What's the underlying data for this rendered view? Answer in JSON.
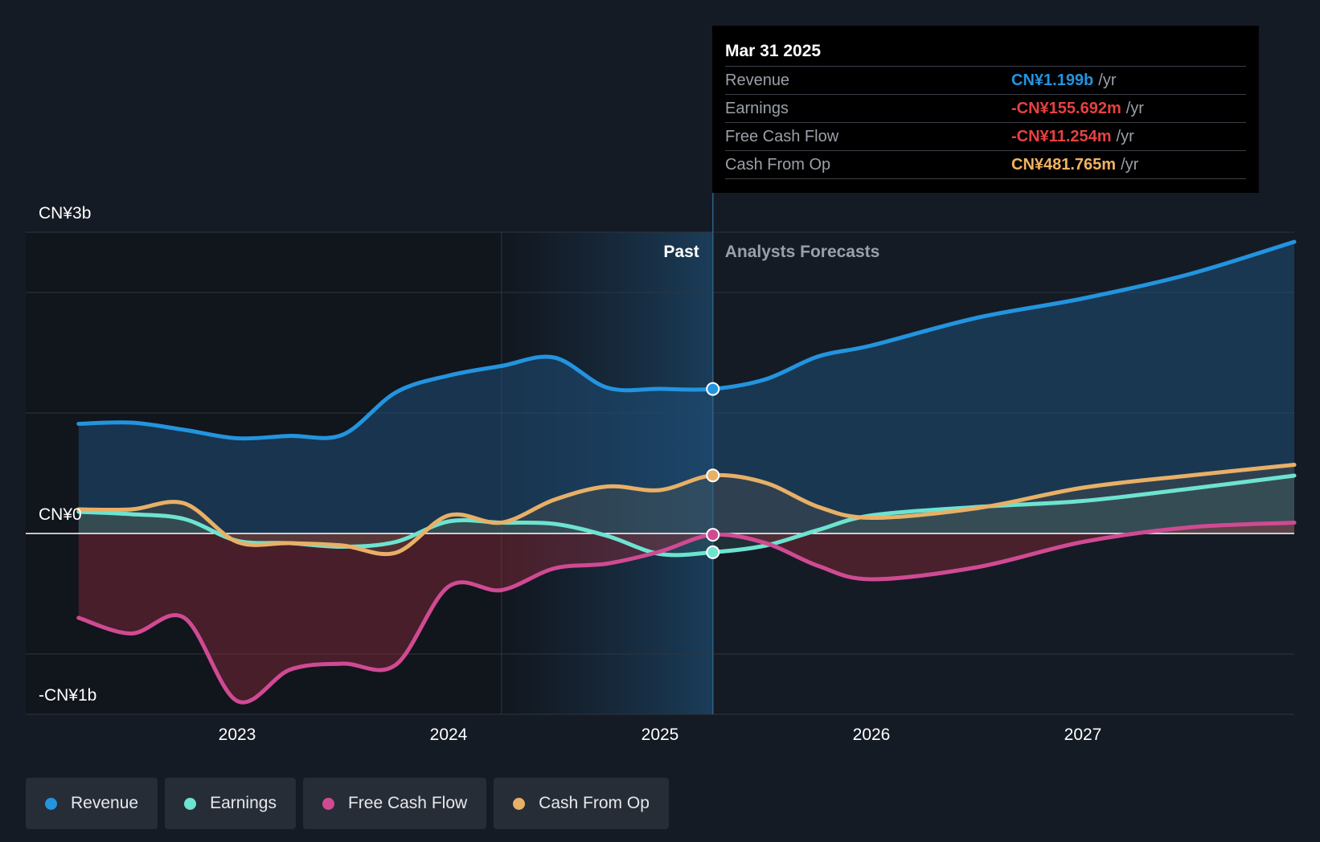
{
  "tooltip": {
    "date": "Mar 31 2025",
    "rows": [
      {
        "label": "Revenue",
        "value": "CN¥1.199b",
        "unit": "/yr",
        "color": "#2394df"
      },
      {
        "label": "Earnings",
        "value": "-CN¥155.692m",
        "unit": "/yr",
        "color": "#e64141"
      },
      {
        "label": "Free Cash Flow",
        "value": "-CN¥11.254m",
        "unit": "/yr",
        "color": "#e64141"
      },
      {
        "label": "Cash From Op",
        "value": "CN¥481.765m",
        "unit": "/yr",
        "color": "#f2b360"
      }
    ]
  },
  "legend": [
    {
      "label": "Revenue",
      "color": "#2394df"
    },
    {
      "label": "Earnings",
      "color": "#6de3d0"
    },
    {
      "label": "Free Cash Flow",
      "color": "#d04a93"
    },
    {
      "label": "Cash From Op",
      "color": "#e8b067"
    }
  ],
  "chart_data": {
    "type": "line",
    "y_tick_labels": [
      {
        "label": "CN¥3b",
        "value": 3.0
      },
      {
        "label": "CN¥0",
        "value": 0.0
      },
      {
        "label": "-CN¥1b",
        "value": -1.0
      }
    ],
    "ylim": [
      -1.5,
      2.5
    ],
    "xlim": [
      2022.0,
      2028.0
    ],
    "x_ticks": [
      {
        "label": "2023",
        "value": 2023.0
      },
      {
        "label": "2024",
        "value": 2024.0
      },
      {
        "label": "2025",
        "value": 2025.0
      },
      {
        "label": "2026",
        "value": 2026.0
      },
      {
        "label": "2027",
        "value": 2027.0
      }
    ],
    "past_label": "Past",
    "forecast_label": "Analysts Forecasts",
    "past_end": 2025.25,
    "highlight_start": 2024.25,
    "series": [
      {
        "name": "Revenue",
        "color": "#2394df",
        "fill": true,
        "points": [
          [
            2022.25,
            0.91
          ],
          [
            2022.5,
            0.92
          ],
          [
            2022.75,
            0.86
          ],
          [
            2023.0,
            0.79
          ],
          [
            2023.25,
            0.81
          ],
          [
            2023.5,
            0.82
          ],
          [
            2023.75,
            1.17
          ],
          [
            2024.0,
            1.31
          ],
          [
            2024.25,
            1.39
          ],
          [
            2024.5,
            1.46
          ],
          [
            2024.75,
            1.21
          ],
          [
            2025.0,
            1.2
          ],
          [
            2025.25,
            1.199
          ],
          [
            2025.5,
            1.28
          ],
          [
            2025.75,
            1.47
          ],
          [
            2026.0,
            1.56
          ],
          [
            2026.5,
            1.79
          ],
          [
            2027.0,
            1.95
          ],
          [
            2027.5,
            2.15
          ],
          [
            2028.0,
            2.42
          ]
        ]
      },
      {
        "name": "Earnings",
        "color": "#6de3d0",
        "fill": true,
        "points": [
          [
            2022.25,
            0.18
          ],
          [
            2022.5,
            0.16
          ],
          [
            2022.75,
            0.12
          ],
          [
            2023.0,
            -0.06
          ],
          [
            2023.25,
            -0.08
          ],
          [
            2023.5,
            -0.11
          ],
          [
            2023.75,
            -0.07
          ],
          [
            2024.0,
            0.1
          ],
          [
            2024.25,
            0.09
          ],
          [
            2024.5,
            0.08
          ],
          [
            2024.75,
            -0.02
          ],
          [
            2025.0,
            -0.17
          ],
          [
            2025.25,
            -0.156
          ],
          [
            2025.5,
            -0.1
          ],
          [
            2025.75,
            0.03
          ],
          [
            2026.0,
            0.15
          ],
          [
            2026.5,
            0.22
          ],
          [
            2027.0,
            0.27
          ],
          [
            2027.5,
            0.37
          ],
          [
            2028.0,
            0.48
          ]
        ]
      },
      {
        "name": "Free Cash Flow",
        "color": "#d04a93",
        "fill": true,
        "points": [
          [
            2022.25,
            -0.7
          ],
          [
            2022.5,
            -0.83
          ],
          [
            2022.75,
            -0.7
          ],
          [
            2023.0,
            -1.39
          ],
          [
            2023.25,
            -1.13
          ],
          [
            2023.5,
            -1.08
          ],
          [
            2023.75,
            -1.09
          ],
          [
            2024.0,
            -0.44
          ],
          [
            2024.25,
            -0.47
          ],
          [
            2024.5,
            -0.29
          ],
          [
            2024.75,
            -0.25
          ],
          [
            2025.0,
            -0.15
          ],
          [
            2025.25,
            -0.011
          ],
          [
            2025.5,
            -0.08
          ],
          [
            2025.75,
            -0.27
          ],
          [
            2026.0,
            -0.38
          ],
          [
            2026.5,
            -0.28
          ],
          [
            2027.0,
            -0.07
          ],
          [
            2027.5,
            0.05
          ],
          [
            2028.0,
            0.09
          ]
        ]
      },
      {
        "name": "Cash From Op",
        "color": "#e8b067",
        "fill": true,
        "points": [
          [
            2022.25,
            0.2
          ],
          [
            2022.5,
            0.2
          ],
          [
            2022.75,
            0.25
          ],
          [
            2023.0,
            -0.07
          ],
          [
            2023.25,
            -0.08
          ],
          [
            2023.5,
            -0.1
          ],
          [
            2023.75,
            -0.16
          ],
          [
            2024.0,
            0.15
          ],
          [
            2024.25,
            0.09
          ],
          [
            2024.5,
            0.28
          ],
          [
            2024.75,
            0.39
          ],
          [
            2025.0,
            0.36
          ],
          [
            2025.25,
            0.482
          ],
          [
            2025.5,
            0.42
          ],
          [
            2025.75,
            0.22
          ],
          [
            2026.0,
            0.13
          ],
          [
            2026.5,
            0.21
          ],
          [
            2027.0,
            0.38
          ],
          [
            2027.5,
            0.48
          ],
          [
            2028.0,
            0.57
          ]
        ]
      }
    ]
  }
}
